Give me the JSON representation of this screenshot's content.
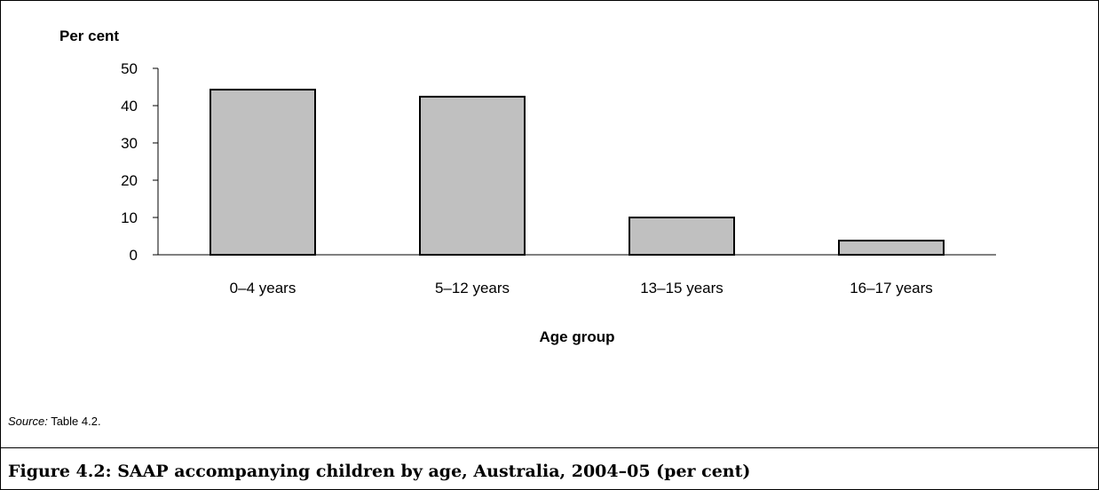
{
  "chart_data": {
    "type": "bar",
    "categories": [
      "0–4 years",
      "5–12 years",
      "13–15 years",
      "16–17 years"
    ],
    "values": [
      44.3,
      42.4,
      10.0,
      3.8
    ],
    "xlabel": "Age group",
    "ylabel": "Per cent",
    "ylim": [
      0,
      50
    ],
    "yticks": [
      "0",
      "10",
      "20",
      "30",
      "40",
      "50"
    ],
    "grid": false,
    "bar_color": "#c0c0c0",
    "bar_edge_color": "#000000"
  },
  "source": {
    "label": "Source:",
    "text": " Table 4.2."
  },
  "caption": "Figure 4.2: SAAP accompanying children by age, Australia, 2004–05 (per cent)"
}
